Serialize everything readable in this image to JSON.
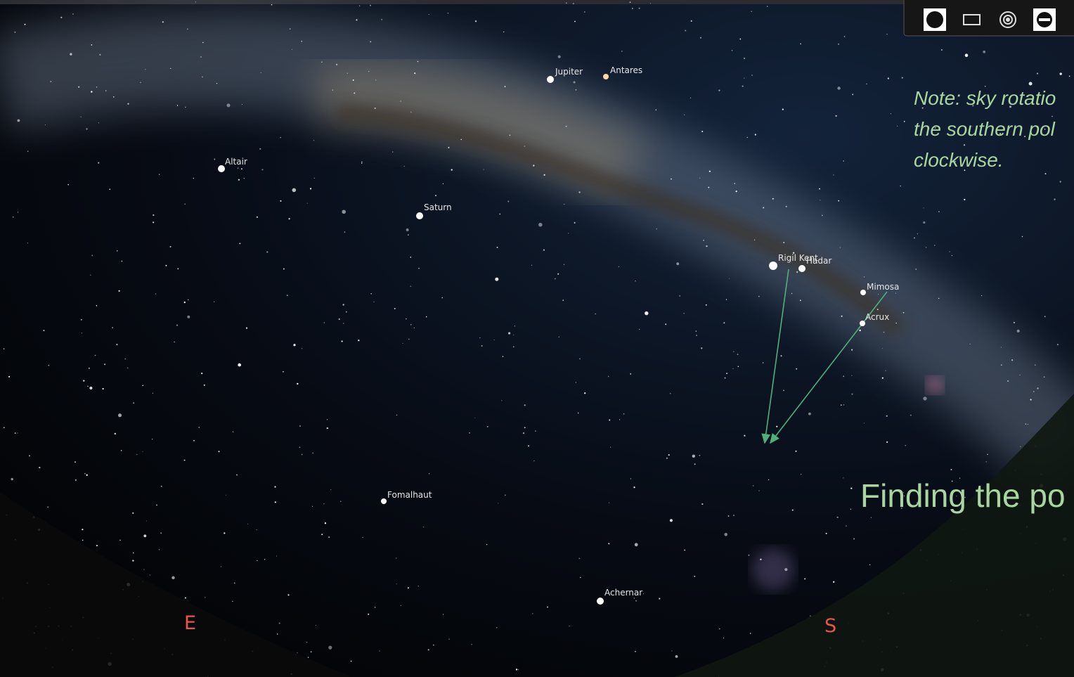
{
  "sky_labels": [
    "Jupiter",
    "Antares",
    "Altair",
    "Saturn",
    "Rigil Kent",
    "Hadar",
    "Mimosa",
    "Acrux",
    "Fomalhaut",
    "Achernar"
  ],
  "cardinal_points": [
    "E",
    "S"
  ],
  "note": [
    "Note: sky rotatio",
    "the southern pol",
    "clockwise."
  ],
  "heading": "Finding the po"
}
